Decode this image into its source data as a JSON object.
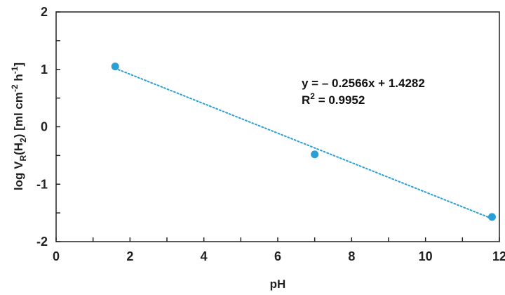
{
  "chart_data": {
    "type": "scatter",
    "x": [
      1.6,
      7.0,
      11.8
    ],
    "y": [
      1.05,
      -0.48,
      -1.57
    ],
    "xlabel": "pH",
    "ylabel": {
      "prefix": "log V",
      "sub1": "R",
      "mid1": "(H",
      "sub2": "2",
      "mid2": ") [ml cm",
      "sup1": "-2",
      "mid3": " h",
      "sup2": "-1",
      "suffix": "]"
    },
    "xlim": [
      0,
      12
    ],
    "ylim": [
      -2,
      2
    ],
    "xticks": [
      "0",
      "2",
      "4",
      "6",
      "8",
      "10",
      "12"
    ],
    "yticks": [
      "-2",
      "-1",
      "0",
      "1",
      "2"
    ],
    "grid": false,
    "trendline": {
      "type": "linear",
      "slope": -0.2566,
      "intercept": 1.4282,
      "style": "dotted",
      "equation": "y = – 0.2566x + 1.4282",
      "r2_prefix": "R",
      "r2_sup": "2",
      "r2_suffix": " = 0.9952"
    },
    "colors": {
      "points": "#2a9fd6",
      "trendline": "#2a9fd6",
      "axis": "#222222"
    }
  }
}
